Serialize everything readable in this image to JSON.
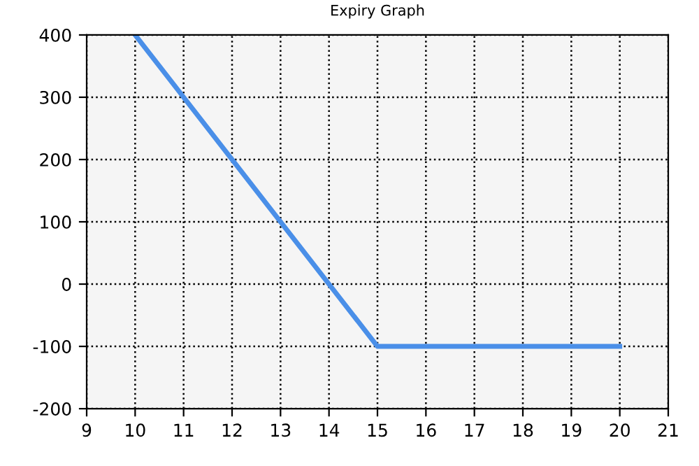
{
  "chart_data": {
    "type": "line",
    "title": "Expiry Graph",
    "x": [
      10,
      15,
      20
    ],
    "series": [
      {
        "color": "#4a8fe8",
        "values": [
          400,
          -100,
          -100
        ]
      }
    ],
    "xlim": [
      9,
      21
    ],
    "xticks": [
      9,
      10,
      11,
      12,
      13,
      14,
      15,
      16,
      17,
      18,
      19,
      20,
      21
    ],
    "ylim": [
      -200,
      400
    ],
    "yticks": [
      -200,
      -100,
      0,
      100,
      200,
      300,
      400
    ],
    "grid": true,
    "marker": "none",
    "line_style": "solid"
  }
}
